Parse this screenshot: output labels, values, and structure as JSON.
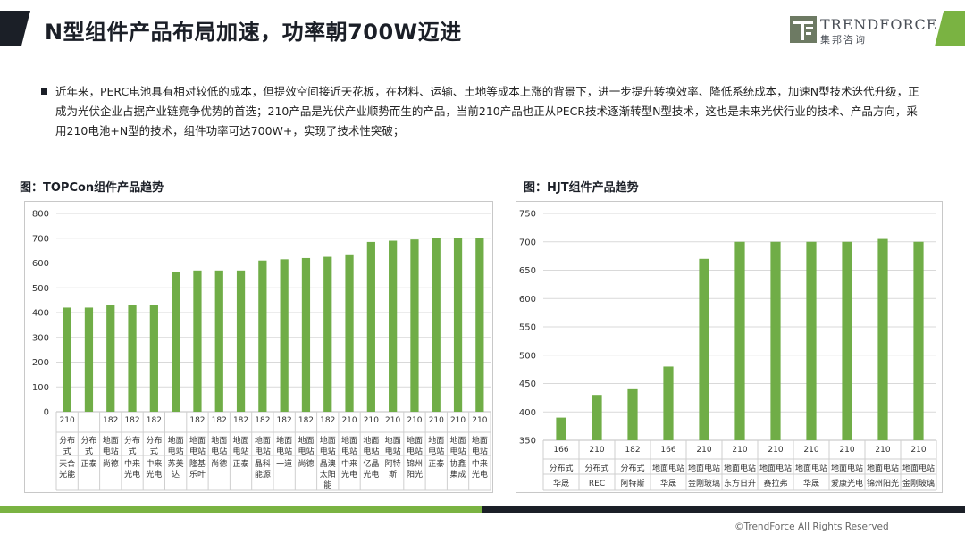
{
  "header": {
    "title": "N型组件产品布局加速，功率朝700W迈进",
    "logo_en": "TRENDFORCE",
    "logo_cn": "集邦咨询"
  },
  "body": {
    "paragraph": "近年来，PERC电池具有相对较低的成本，但提效空间接近天花板，在材料、运输、土地等成本上涨的背景下，进一步提升转换效率、降低系统成本，加速N型技术迭代升级，正成为光伏企业占据产业链竞争优势的首选；210产品是光伏产业顺势而生的产品，当前210产品也正从PECR技术逐渐转型N型技术，这也是未来光伏行业的技术、产品方向，采用210电池+N型的技术，组件功率可达700W+，实现了技术性突破；"
  },
  "colors": {
    "bar": "#70ad47",
    "dark": "#1b1f27",
    "accent": "#7ab342"
  },
  "footer": {
    "copyright": "©TrendForce All Rights Reserved"
  },
  "chart_data": [
    {
      "type": "bar",
      "title": "图：TOPCon组件产品趋势",
      "ylim": [
        0,
        800
      ],
      "yticks": [
        0,
        100,
        200,
        300,
        400,
        500,
        600,
        700,
        800
      ],
      "grid": true,
      "sizes": [
        "210",
        "",
        "182",
        "182",
        "182",
        "",
        "182",
        "182",
        "182",
        "182",
        "182",
        "182",
        "182",
        "210",
        "210",
        "210",
        "210",
        "210",
        "210",
        "210"
      ],
      "types": [
        "分布式",
        "分布式",
        "地面电站",
        "分布式",
        "分布式",
        "地面电站",
        "地面电站",
        "地面电站",
        "地面电站",
        "地面电站",
        "地面电站",
        "地面电站",
        "地面电站",
        "地面电站",
        "地面电站",
        "地面电站",
        "地面电站",
        "地面电站",
        "地面电站",
        "地面电站"
      ],
      "companies": [
        "天合光能",
        "正泰",
        "尚德",
        "中来光电",
        "中来光电",
        "苏美达",
        "隆基乐叶",
        "尚德",
        "正泰",
        "晶科能源",
        "一道",
        "尚德",
        "晶澳太阳能",
        "中来光电",
        "亿晶光电",
        "阿特斯",
        "锦州阳光",
        "正泰",
        "协鑫集成",
        "中来光电"
      ],
      "values": [
        420,
        420,
        430,
        430,
        430,
        565,
        570,
        570,
        570,
        610,
        615,
        620,
        625,
        635,
        685,
        690,
        695,
        700,
        700,
        700
      ]
    },
    {
      "type": "bar",
      "title": "图：HJT组件产品趋势",
      "ylim": [
        350,
        750
      ],
      "yticks": [
        350,
        400,
        450,
        500,
        550,
        600,
        650,
        700,
        750
      ],
      "grid": true,
      "sizes": [
        "166",
        "210",
        "182",
        "166",
        "210",
        "210",
        "210",
        "210",
        "210",
        "210",
        "210"
      ],
      "types": [
        "分布式",
        "分布式",
        "分布式",
        "地面电站",
        "地面电站",
        "地面电站",
        "地面电站",
        "地面电站",
        "地面电站",
        "地面电站",
        "地面电站"
      ],
      "companies": [
        "华晟",
        "REC",
        "阿特斯",
        "华晟",
        "金刚玻璃",
        "东方日升",
        "赛拉弗",
        "华晟",
        "爱康光电",
        "锦州阳光",
        "金刚玻璃"
      ],
      "values": [
        390,
        430,
        440,
        480,
        670,
        700,
        700,
        700,
        700,
        705,
        700
      ]
    }
  ]
}
